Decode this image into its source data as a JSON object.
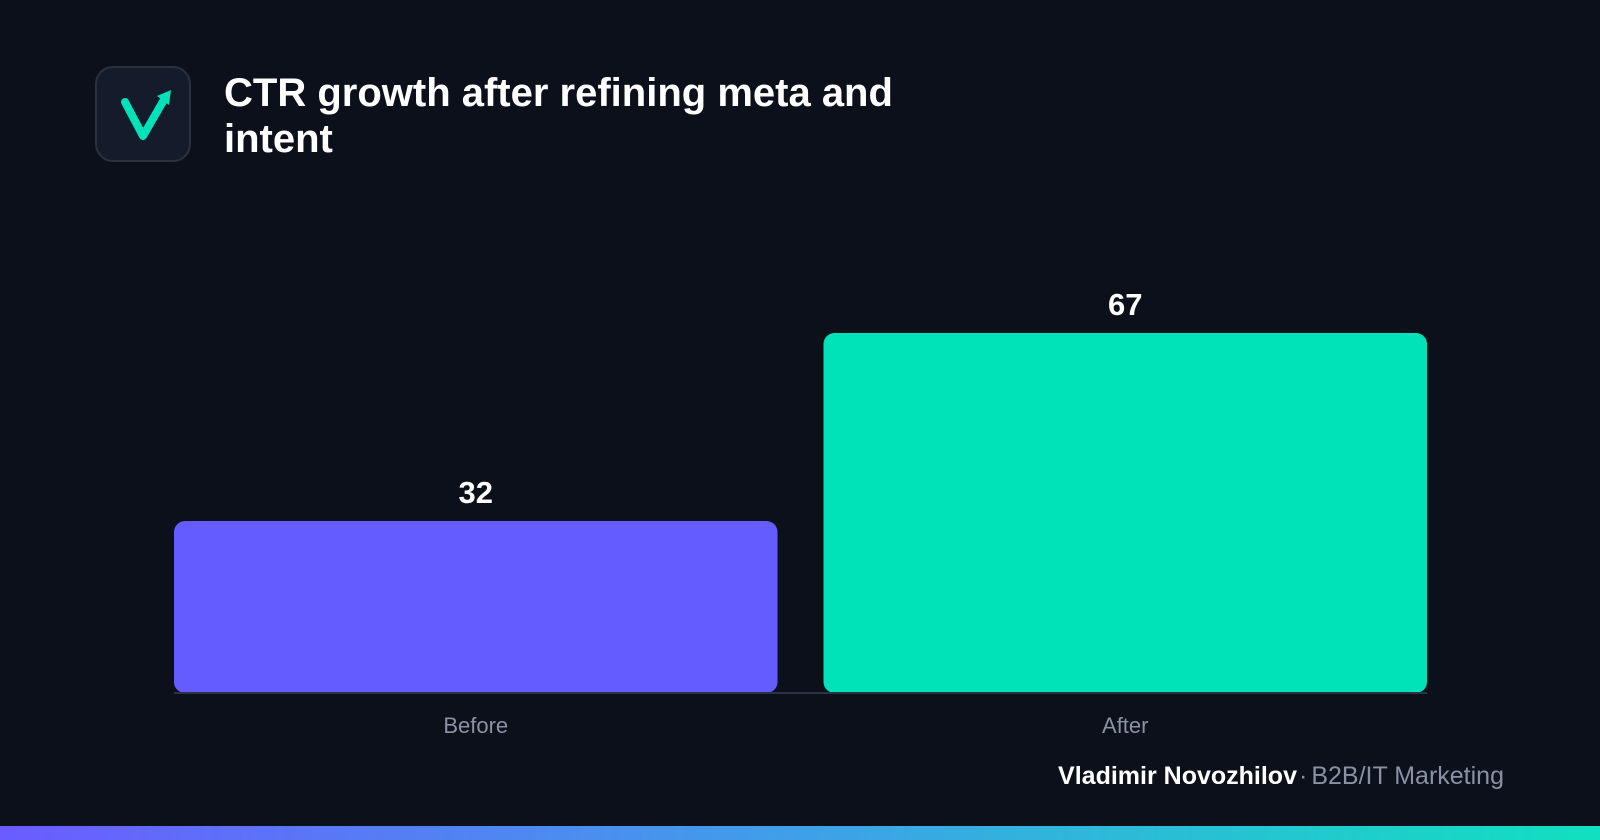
{
  "header": {
    "logo_icon": "check-arrow-logo-icon",
    "title": "CTR growth after refining meta and intent"
  },
  "chart_data": {
    "type": "bar",
    "title": "CTR growth after refining meta and intent",
    "xlabel": "",
    "ylabel": "",
    "categories": [
      "Before",
      "After"
    ],
    "values": [
      32,
      67
    ],
    "colors": [
      "#655cff",
      "#00e2b8"
    ],
    "ylim": [
      0,
      67
    ],
    "grid": false,
    "legend": "none"
  },
  "footer": {
    "author": "Vladimir Novozhilov",
    "separator": "·",
    "role": "B2B/IT Marketing"
  },
  "colors": {
    "background": "#0b101b",
    "accent_purple": "#655cff",
    "accent_teal": "#00e2b8",
    "muted_text": "#8a91a3"
  }
}
